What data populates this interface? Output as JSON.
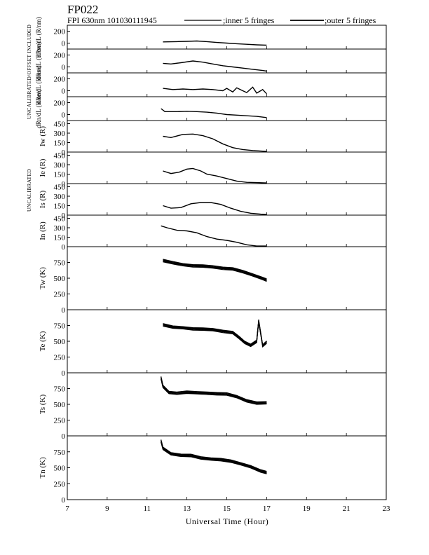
{
  "header": {
    "title": "FP022",
    "subtitle": "FPI 630nm 101030111945",
    "legend_inner": ";inner 5 fringes",
    "legend_outer": ";outer 5 fringes"
  },
  "side_labels": {
    "uncalibrated_offset": "UNCALIBRATED/OFFSET INCLUDED",
    "uncalibrated": "UNCALIBRATED"
  },
  "chart_data": {
    "type": "line",
    "xlabel": "Universal Time (Hour)",
    "xlim": [
      7,
      23
    ],
    "xticks": [
      7,
      9,
      11,
      13,
      15,
      17,
      19,
      21,
      23
    ],
    "panels": [
      {
        "id": "drw",
        "ylabel": "dRw/dL (R/nm)",
        "ylim": [
          -100,
          300
        ],
        "yticks": [
          0,
          200
        ],
        "series": [
          {
            "x": [
              11.8,
              12.5,
              13.0,
              13.5,
              14.0,
              14.5,
              15.0,
              15.5,
              16.0,
              16.5,
              17.0
            ],
            "y": [
              20,
              25,
              30,
              35,
              25,
              10,
              0,
              -10,
              -20,
              -30,
              -35
            ]
          }
        ]
      },
      {
        "id": "dls",
        "ylabel": "dRs/dL (R/nm)",
        "ylim": [
          -100,
          300
        ],
        "yticks": [
          0,
          200
        ],
        "series": [
          {
            "x": [
              11.8,
              12.2,
              12.7,
              13.3,
              13.8,
              14.3,
              14.8,
              15.3,
              15.8,
              16.3,
              16.8,
              17.0
            ],
            "y": [
              60,
              50,
              70,
              100,
              80,
              50,
              20,
              0,
              -20,
              -40,
              -60,
              -70
            ]
          }
        ]
      },
      {
        "id": "dre",
        "ylabel": "dRe/dL (R/nm)",
        "ylim": [
          -100,
          300
        ],
        "yticks": [
          0,
          200
        ],
        "series": [
          {
            "x": [
              11.8,
              12.3,
              12.8,
              13.3,
              13.8,
              14.3,
              14.8,
              15.0,
              15.3,
              15.5,
              15.8,
              16.0,
              16.3,
              16.5,
              16.8,
              17.0
            ],
            "y": [
              40,
              20,
              30,
              20,
              30,
              20,
              0,
              40,
              -20,
              50,
              0,
              -30,
              60,
              -40,
              20,
              -50
            ]
          }
        ]
      },
      {
        "id": "drn",
        "ylabel": "dRn/dL (R/nm)",
        "ylim": [
          -100,
          300
        ],
        "yticks": [
          0,
          200
        ],
        "series": [
          {
            "x": [
              11.7,
              11.9,
              12.5,
              13.0,
              13.5,
              14.0,
              14.5,
              15.0,
              15.5,
              16.0,
              16.5,
              17.0
            ],
            "y": [
              100,
              50,
              50,
              55,
              50,
              40,
              25,
              0,
              -10,
              -20,
              -30,
              -50
            ]
          }
        ]
      },
      {
        "id": "iw",
        "ylabel": "Iw (R)",
        "ylim": [
          0,
          500
        ],
        "yticks": [
          0,
          150,
          300,
          450
        ],
        "series": [
          {
            "x": [
              11.8,
              12.2,
              12.8,
              13.3,
              13.8,
              14.3,
              14.8,
              15.3,
              15.8,
              16.3,
              16.8,
              17.0
            ],
            "y": [
              250,
              230,
              280,
              285,
              260,
              210,
              130,
              70,
              40,
              25,
              15,
              10
            ]
          }
        ]
      },
      {
        "id": "ie",
        "ylabel": "Ie (R)",
        "ylim": [
          0,
          500
        ],
        "yticks": [
          0,
          150,
          300,
          450
        ],
        "series": [
          {
            "x": [
              11.8,
              12.2,
              12.6,
              13.0,
              13.3,
              13.7,
              14.0,
              14.5,
              15.0,
              15.5,
              16.0,
              16.5,
              17.0
            ],
            "y": [
              200,
              160,
              180,
              230,
              240,
              200,
              150,
              120,
              80,
              40,
              20,
              15,
              10
            ]
          }
        ]
      },
      {
        "id": "is",
        "ylabel": "Is (R)",
        "ylim": [
          0,
          500
        ],
        "yticks": [
          0,
          150,
          300,
          450
        ],
        "series": [
          {
            "x": [
              11.8,
              12.2,
              12.7,
              13.2,
              13.7,
              14.2,
              14.7,
              15.2,
              15.7,
              16.2,
              16.7,
              17.0
            ],
            "y": [
              150,
              110,
              120,
              180,
              200,
              200,
              170,
              110,
              60,
              30,
              15,
              10
            ]
          }
        ]
      },
      {
        "id": "in",
        "ylabel": "In (R)",
        "ylim": [
          0,
          500
        ],
        "yticks": [
          0,
          150,
          300,
          450
        ],
        "series": [
          {
            "x": [
              11.7,
              12.0,
              12.5,
              13.0,
              13.5,
              14.0,
              14.5,
              15.0,
              15.5,
              16.0,
              16.5,
              17.0
            ],
            "y": [
              330,
              300,
              260,
              250,
              220,
              160,
              120,
              100,
              70,
              30,
              10,
              10
            ]
          }
        ]
      },
      {
        "id": "tw",
        "ylabel": "Tw (K)",
        "ylim": [
          0,
          1000
        ],
        "yticks": [
          0,
          250,
          500,
          750
        ],
        "bundle": 0.75,
        "bundle_spread": 40,
        "series": [
          {
            "x": [
              11.8,
              12.3,
              12.8,
              13.3,
              13.8,
              14.3,
              14.8,
              15.3,
              15.8,
              16.3,
              16.8,
              17.0
            ],
            "y": [
              780,
              740,
              715,
              700,
              690,
              675,
              660,
              650,
              600,
              550,
              500,
              470
            ]
          }
        ]
      },
      {
        "id": "te",
        "ylabel": "Te (K)",
        "ylim": [
          0,
          1000
        ],
        "yticks": [
          0,
          250,
          500,
          750
        ],
        "bundle": 0.75,
        "bundle_spread": 40,
        "series": [
          {
            "x": [
              11.8,
              12.3,
              12.8,
              13.3,
              13.8,
              14.3,
              14.8,
              15.3,
              15.6,
              15.9,
              16.2,
              16.5,
              16.6,
              16.8,
              17.0
            ],
            "y": [
              760,
              720,
              715,
              700,
              690,
              680,
              660,
              640,
              560,
              480,
              440,
              500,
              820,
              430,
              490
            ]
          }
        ]
      },
      {
        "id": "ts",
        "ylabel": "Ts (K)",
        "ylim": [
          0,
          1000
        ],
        "yticks": [
          0,
          250,
          500,
          750
        ],
        "bundle": 0.75,
        "bundle_spread": 40,
        "series": [
          {
            "x": [
              11.7,
              11.8,
              12.1,
              12.5,
              13.0,
              13.5,
              14.0,
              14.5,
              15.0,
              15.5,
              16.0,
              16.5,
              17.0
            ],
            "y": [
              920,
              780,
              690,
              680,
              690,
              680,
              680,
              670,
              660,
              620,
              560,
              520,
              520
            ]
          }
        ]
      },
      {
        "id": "tn",
        "ylabel": "Tn (K)",
        "ylim": [
          0,
          1000
        ],
        "yticks": [
          0,
          250,
          500,
          750
        ],
        "bundle": 0.75,
        "bundle_spread": 40,
        "series": [
          {
            "x": [
              11.7,
              11.8,
              12.2,
              12.7,
              13.2,
              13.7,
              14.2,
              14.7,
              15.2,
              15.7,
              16.2,
              16.7,
              17.0
            ],
            "y": [
              920,
              800,
              720,
              700,
              690,
              650,
              640,
              630,
              600,
              560,
              520,
              450,
              420
            ]
          }
        ]
      }
    ]
  }
}
